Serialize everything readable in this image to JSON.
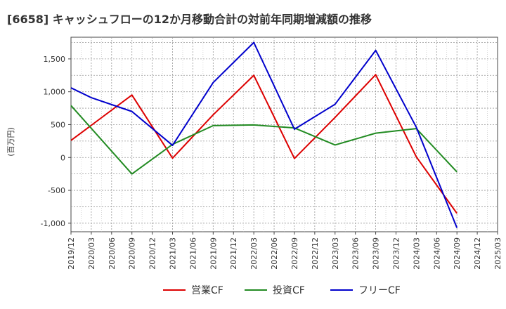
{
  "title": "[6658]  キャッシュフローの12か月移動合計の対前年同期増減額の推移",
  "chart_data": {
    "type": "line",
    "ylabel": "(百万円)",
    "ylim": [
      -1130,
      1830
    ],
    "yticks": [
      -1000,
      -500,
      0,
      500,
      1000,
      1500
    ],
    "ytick_labels": [
      "-1,000",
      "-500",
      "0",
      "500",
      "1,000",
      "1,500"
    ],
    "x_ticks": [
      "2019/12",
      "2020/03",
      "2020/06",
      "2020/09",
      "2020/12",
      "2021/03",
      "2021/06",
      "2021/09",
      "2021/12",
      "2022/03",
      "2022/06",
      "2022/09",
      "2022/12",
      "2023/03",
      "2023/06",
      "2023/09",
      "2023/12",
      "2024/03",
      "2024/06",
      "2024/09",
      "2024/12",
      "2025/03"
    ],
    "grid": true,
    "legend_position": "bottom",
    "series": [
      {
        "name": "営業CF",
        "color": "#dd0000",
        "points": [
          [
            "2019/12",
            260
          ],
          [
            "2020/09",
            950
          ],
          [
            "2021/03",
            -10
          ],
          [
            "2021/09",
            650
          ],
          [
            "2022/03",
            1250
          ],
          [
            "2022/09",
            -15
          ],
          [
            "2023/03",
            610
          ],
          [
            "2023/09",
            1260
          ],
          [
            "2024/03",
            10
          ],
          [
            "2024/09",
            -850
          ]
        ]
      },
      {
        "name": "投資CF",
        "color": "#228B22",
        "points": [
          [
            "2019/12",
            790
          ],
          [
            "2020/09",
            -250
          ],
          [
            "2021/03",
            200
          ],
          [
            "2021/09",
            485
          ],
          [
            "2022/03",
            495
          ],
          [
            "2022/09",
            450
          ],
          [
            "2023/03",
            190
          ],
          [
            "2023/09",
            370
          ],
          [
            "2024/03",
            440
          ],
          [
            "2024/09",
            -220
          ]
        ]
      },
      {
        "name": "フリーCF",
        "color": "#0000cc",
        "points": [
          [
            "2019/12",
            1060
          ],
          [
            "2020/03",
            910
          ],
          [
            "2020/09",
            700
          ],
          [
            "2021/03",
            185
          ],
          [
            "2021/09",
            1140
          ],
          [
            "2022/03",
            1750
          ],
          [
            "2022/09",
            430
          ],
          [
            "2023/03",
            810
          ],
          [
            "2023/09",
            1630
          ],
          [
            "2024/03",
            460
          ],
          [
            "2024/09",
            -1070
          ]
        ]
      }
    ]
  }
}
